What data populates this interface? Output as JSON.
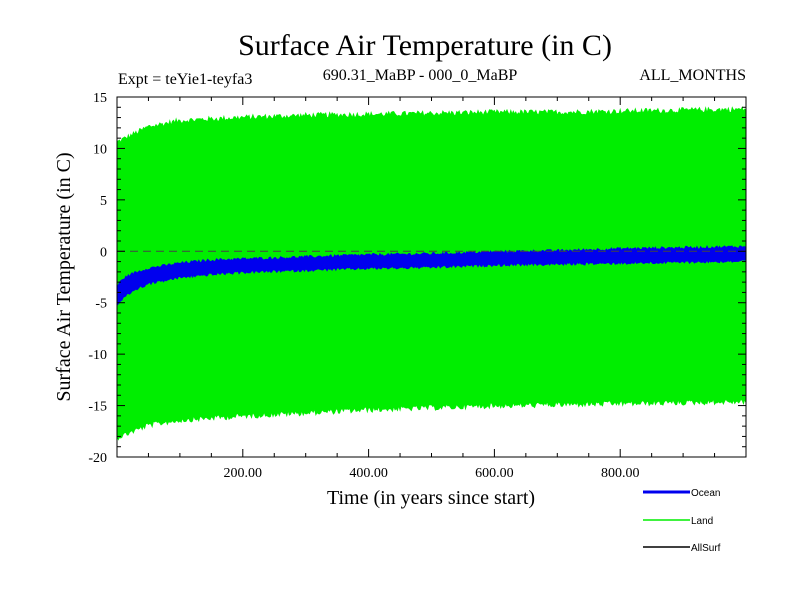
{
  "chart_data": {
    "type": "area",
    "title": "Surface Air Temperature (in C)",
    "subtitle_left": "Expt = teYie1-teyfa3",
    "subtitle_center": "690.31_MaBP - 000_0_MaBP",
    "subtitle_right": "ALL_MONTHS",
    "xlabel": "Time (in years since start)",
    "ylabel": "Surface Air Temperature (in C)",
    "xlim": [
      0,
      1000
    ],
    "ylim": [
      -20,
      15
    ],
    "xticks": [
      {
        "value": 200,
        "label": "200.00"
      },
      {
        "value": 400,
        "label": "400.00"
      },
      {
        "value": 600,
        "label": "600.00"
      },
      {
        "value": 800,
        "label": "800.00"
      }
    ],
    "yticks": [
      {
        "value": 15,
        "label": "15"
      },
      {
        "value": 10,
        "label": "10"
      },
      {
        "value": 5,
        "label": "5"
      },
      {
        "value": 0,
        "label": "0"
      },
      {
        "value": -5,
        "label": "-5"
      },
      {
        "value": -10,
        "label": "-10"
      },
      {
        "value": -15,
        "label": "-15"
      },
      {
        "value": -20,
        "label": "-20"
      }
    ],
    "reference_line": {
      "y": 0,
      "style": "dashed"
    },
    "series": [
      {
        "name": "Land",
        "color": "#00ee00",
        "kind": "band",
        "x": [
          0,
          50,
          100,
          200,
          300,
          400,
          500,
          600,
          700,
          800,
          900,
          1000
        ],
        "upper": [
          10.5,
          12.0,
          12.6,
          12.9,
          13.1,
          13.2,
          13.3,
          13.4,
          13.4,
          13.5,
          13.6,
          13.7
        ],
        "lower": [
          -18.0,
          -16.8,
          -16.3,
          -15.9,
          -15.6,
          -15.3,
          -15.1,
          -14.9,
          -14.8,
          -14.7,
          -14.6,
          -14.5
        ]
      },
      {
        "name": "Ocean",
        "color": "#0000ee",
        "kind": "band",
        "x": [
          0,
          10,
          25,
          50,
          100,
          150,
          200,
          300,
          400,
          500,
          600,
          700,
          800,
          900,
          1000
        ],
        "upper": [
          -3.4,
          -2.7,
          -2.2,
          -1.7,
          -1.2,
          -0.9,
          -0.8,
          -0.6,
          -0.4,
          -0.3,
          -0.1,
          0.0,
          0.2,
          0.3,
          0.4
        ],
        "lower": [
          -5.2,
          -4.5,
          -3.8,
          -3.1,
          -2.5,
          -2.2,
          -2.0,
          -1.8,
          -1.6,
          -1.5,
          -1.3,
          -1.2,
          -1.1,
          -1.0,
          -0.9
        ]
      },
      {
        "name": "AllSurf",
        "color": "#000000",
        "kind": "line",
        "x": [],
        "values": []
      }
    ],
    "legend": {
      "placement": "bottom-right",
      "entries": [
        {
          "label": "Ocean",
          "color": "#0000ee"
        },
        {
          "label": "Land",
          "color": "#00ee00"
        },
        {
          "label": "AllSurf",
          "color": "#000000"
        }
      ]
    }
  }
}
